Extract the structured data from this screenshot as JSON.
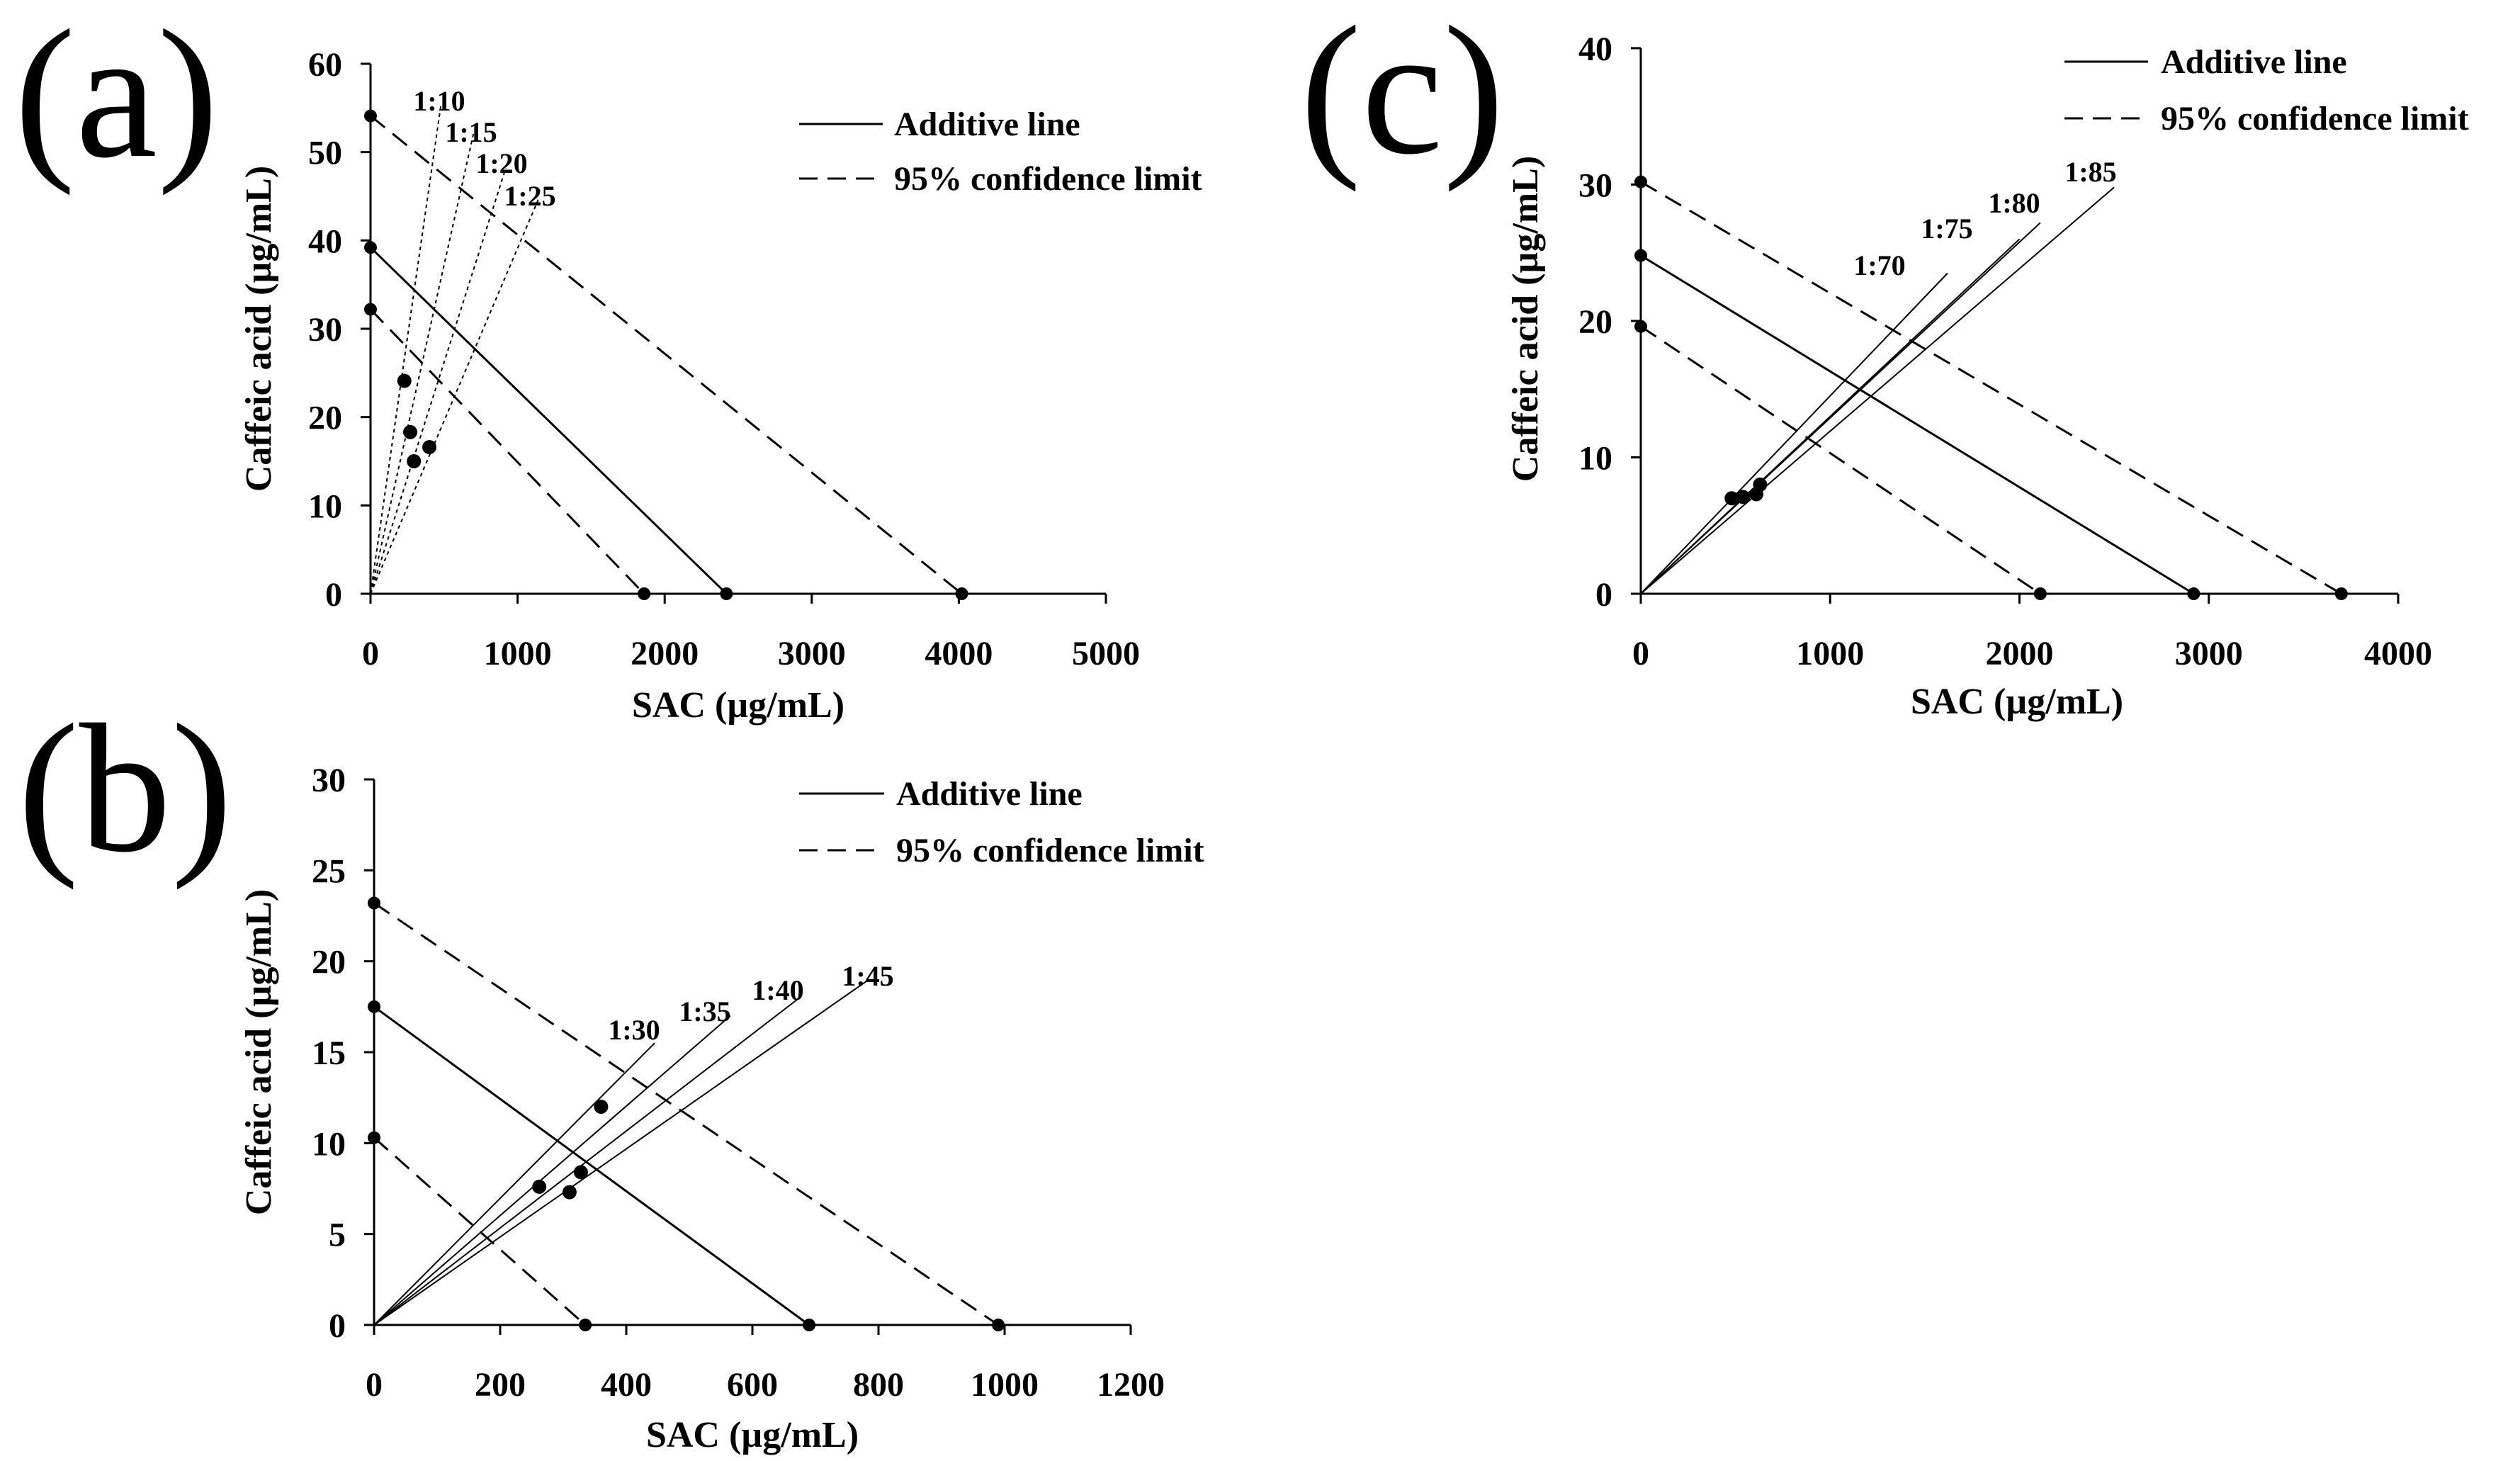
{
  "chart_data": [
    {
      "type": "scatter",
      "panel": "(a)",
      "xlabel": "SAC (µg/mL)",
      "ylabel": "Caffeic acid (µg/mL)",
      "xlim": [
        0,
        5000
      ],
      "ylim": [
        0,
        60
      ],
      "xticks": [
        0,
        1000,
        2000,
        3000,
        4000,
        5000
      ],
      "yticks": [
        0,
        10,
        20,
        30,
        40,
        50,
        60
      ],
      "legend": {
        "position": "top-right",
        "additive": "Additive line",
        "confidence": "95% confidence limit"
      },
      "additive_line": {
        "x_intercept": 2420,
        "y_intercept": 39.2
      },
      "confidence_lower": {
        "x_intercept": 1860,
        "y_intercept": 32.2
      },
      "confidence_upper": {
        "x_intercept": 4020,
        "y_intercept": 54.1
      },
      "ratio_lines": [
        {
          "label": "1:10",
          "end": [
            480,
            55.5
          ]
        },
        {
          "label": "1:15",
          "end": [
            700,
            52.1
          ]
        },
        {
          "label": "1:20",
          "end": [
            920,
            48.2
          ]
        },
        {
          "label": "1:25",
          "end": [
            1140,
            44.6
          ]
        }
      ],
      "points": [
        [
          230,
          24.1
        ],
        [
          270,
          18.3
        ],
        [
          295,
          15.0
        ],
        [
          400,
          16.6
        ]
      ]
    },
    {
      "type": "scatter",
      "panel": "(b)",
      "xlabel": "SAC (µg/mL)",
      "ylabel": "Caffeic acid (µg/mL)",
      "xlim": [
        0,
        1200
      ],
      "ylim": [
        0,
        30
      ],
      "xticks": [
        0,
        200,
        400,
        600,
        800,
        1000,
        1200
      ],
      "yticks": [
        0,
        5,
        10,
        15,
        20,
        25,
        30
      ],
      "legend": {
        "position": "top-right",
        "additive": "Additive line",
        "confidence": "95% confidence limit"
      },
      "additive_line": {
        "x_intercept": 690,
        "y_intercept": 17.5
      },
      "confidence_lower": {
        "x_intercept": 335,
        "y_intercept": 10.3
      },
      "confidence_upper": {
        "x_intercept": 990,
        "y_intercept": 23.2
      },
      "ratio_lines": [
        {
          "label": "1:30",
          "end": [
            445,
            15.5
          ]
        },
        {
          "label": "1:35",
          "end": [
            565,
            17.0
          ]
        },
        {
          "label": "1:40",
          "end": [
            675,
            18.0
          ]
        },
        {
          "label": "1:45",
          "end": [
            785,
            19.0
          ]
        }
      ],
      "points": [
        [
          262,
          7.6
        ],
        [
          310,
          7.3
        ],
        [
          328,
          8.4
        ],
        [
          360,
          12.0
        ]
      ]
    },
    {
      "type": "scatter",
      "panel": "(c)",
      "xlabel": "SAC (µg/mL)",
      "ylabel": "Caffeic acid (µg/mL)",
      "xlim": [
        0,
        4000
      ],
      "ylim": [
        0,
        40
      ],
      "xticks": [
        0,
        1000,
        2000,
        3000,
        4000
      ],
      "yticks": [
        0,
        10,
        20,
        30,
        40
      ],
      "legend": {
        "position": "top-right",
        "additive": "Additive line",
        "confidence": "95% confidence limit"
      },
      "additive_line": {
        "x_intercept": 2920,
        "y_intercept": 24.8
      },
      "confidence_lower": {
        "x_intercept": 2110,
        "y_intercept": 19.6
      },
      "confidence_upper": {
        "x_intercept": 3700,
        "y_intercept": 30.2
      },
      "ratio_lines": [
        {
          "label": "1:70",
          "end": [
            1620,
            23.5
          ]
        },
        {
          "label": "1:75",
          "end": [
            2000,
            26.0
          ]
        },
        {
          "label": "1:80",
          "end": [
            2110,
            27.2
          ]
        },
        {
          "label": "1:85",
          "end": [
            2500,
            29.8
          ]
        }
      ],
      "points": [
        [
          480,
          7.0
        ],
        [
          540,
          7.1
        ],
        [
          610,
          7.3
        ],
        [
          630,
          8.0
        ]
      ]
    }
  ]
}
